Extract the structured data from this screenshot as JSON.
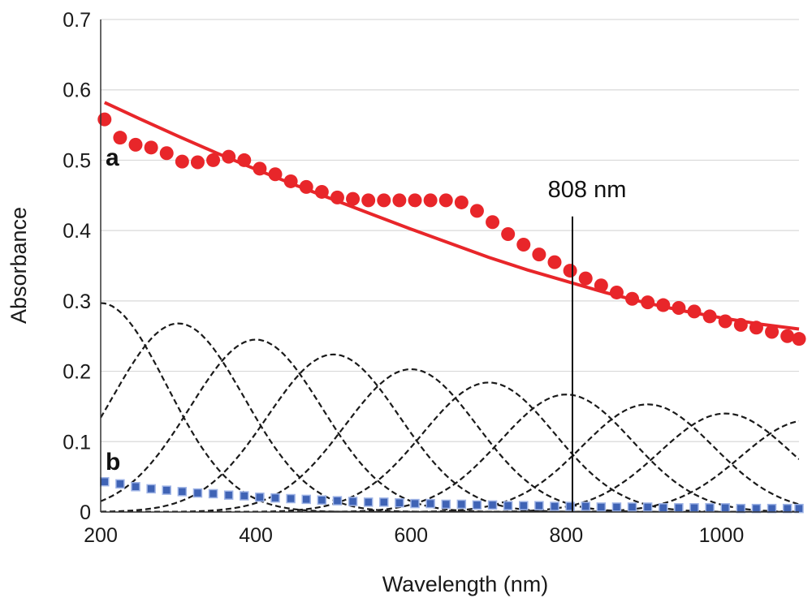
{
  "chart_data": {
    "type": "line",
    "title": "",
    "xlabel": "Wavelength (nm)",
    "ylabel": "Absorbance",
    "xlim": [
      200,
      1100
    ],
    "ylim": [
      0,
      0.7
    ],
    "x_ticks": [
      200,
      400,
      600,
      800,
      1000
    ],
    "y_ticks": [
      0,
      0.1,
      0.2,
      0.3,
      0.4,
      0.5,
      0.6,
      0.7
    ],
    "y_tick_labels": [
      "0",
      "0.1",
      "0.2",
      "0.3",
      "0.4",
      "0.5",
      "0.6",
      "0.7"
    ],
    "grid": true,
    "colors": {
      "a_series": "#e8262a",
      "b_series": "#3f63b5",
      "gaussians": "#1a1a1a",
      "marker_line": "#111111"
    },
    "series": [
      {
        "name": "a (measured)",
        "style": "red-dots",
        "x": [
          205,
          225,
          245,
          265,
          285,
          305,
          325,
          345,
          365,
          385,
          405,
          425,
          445,
          465,
          485,
          505,
          525,
          545,
          565,
          585,
          605,
          625,
          645,
          665,
          685,
          705,
          725,
          745,
          765,
          785,
          805,
          825,
          845,
          865,
          885,
          905,
          925,
          945,
          965,
          985,
          1005,
          1025,
          1045,
          1065,
          1085,
          1100
        ],
        "values": [
          0.558,
          0.532,
          0.522,
          0.518,
          0.51,
          0.498,
          0.497,
          0.5,
          0.505,
          0.5,
          0.488,
          0.48,
          0.47,
          0.462,
          0.455,
          0.447,
          0.445,
          0.443,
          0.443,
          0.443,
          0.443,
          0.443,
          0.443,
          0.44,
          0.428,
          0.412,
          0.395,
          0.38,
          0.366,
          0.355,
          0.343,
          0.332,
          0.322,
          0.312,
          0.303,
          0.298,
          0.294,
          0.29,
          0.285,
          0.278,
          0.271,
          0.266,
          0.262,
          0.256,
          0.25,
          0.246
        ]
      },
      {
        "name": "a (fit)",
        "style": "red-line",
        "x": [
          205,
          250,
          300,
          350,
          400,
          450,
          500,
          550,
          600,
          650,
          700,
          750,
          800,
          850,
          900,
          950,
          1000,
          1050,
          1100
        ],
        "values": [
          0.582,
          0.559,
          0.534,
          0.51,
          0.487,
          0.465,
          0.444,
          0.423,
          0.402,
          0.382,
          0.362,
          0.344,
          0.328,
          0.312,
          0.298,
          0.286,
          0.276,
          0.267,
          0.26
        ]
      },
      {
        "name": "b",
        "style": "blue-squares",
        "x": [
          205,
          225,
          245,
          265,
          285,
          305,
          325,
          345,
          365,
          385,
          405,
          425,
          445,
          465,
          485,
          505,
          525,
          545,
          565,
          585,
          605,
          625,
          645,
          665,
          685,
          705,
          725,
          745,
          765,
          785,
          805,
          825,
          845,
          865,
          885,
          905,
          925,
          945,
          965,
          985,
          1005,
          1025,
          1045,
          1065,
          1085,
          1100
        ],
        "values": [
          0.043,
          0.04,
          0.036,
          0.033,
          0.031,
          0.029,
          0.027,
          0.026,
          0.024,
          0.023,
          0.021,
          0.02,
          0.019,
          0.018,
          0.017,
          0.016,
          0.015,
          0.014,
          0.014,
          0.013,
          0.012,
          0.012,
          0.011,
          0.011,
          0.01,
          0.01,
          0.009,
          0.009,
          0.009,
          0.008,
          0.008,
          0.008,
          0.007,
          0.007,
          0.007,
          0.007,
          0.006,
          0.006,
          0.006,
          0.006,
          0.006,
          0.005,
          0.005,
          0.005,
          0.005,
          0.005
        ]
      }
    ],
    "gaussian_components": [
      {
        "center": 200,
        "amplitude": 0.297,
        "sigma": 85
      },
      {
        "center": 300,
        "amplitude": 0.268,
        "sigma": 85
      },
      {
        "center": 400,
        "amplitude": 0.245,
        "sigma": 85
      },
      {
        "center": 500,
        "amplitude": 0.224,
        "sigma": 85
      },
      {
        "center": 600,
        "amplitude": 0.203,
        "sigma": 85
      },
      {
        "center": 700,
        "amplitude": 0.184,
        "sigma": 85
      },
      {
        "center": 800,
        "amplitude": 0.167,
        "sigma": 85
      },
      {
        "center": 905,
        "amplitude": 0.153,
        "sigma": 85
      },
      {
        "center": 1005,
        "amplitude": 0.14,
        "sigma": 85
      },
      {
        "center": 1110,
        "amplitude": 0.13,
        "sigma": 85
      }
    ],
    "annotations": {
      "curve_label_a": "a",
      "curve_label_b": "b",
      "marker_text": "808 nm",
      "marker_x": 808,
      "marker_top_value": 0.42
    }
  }
}
